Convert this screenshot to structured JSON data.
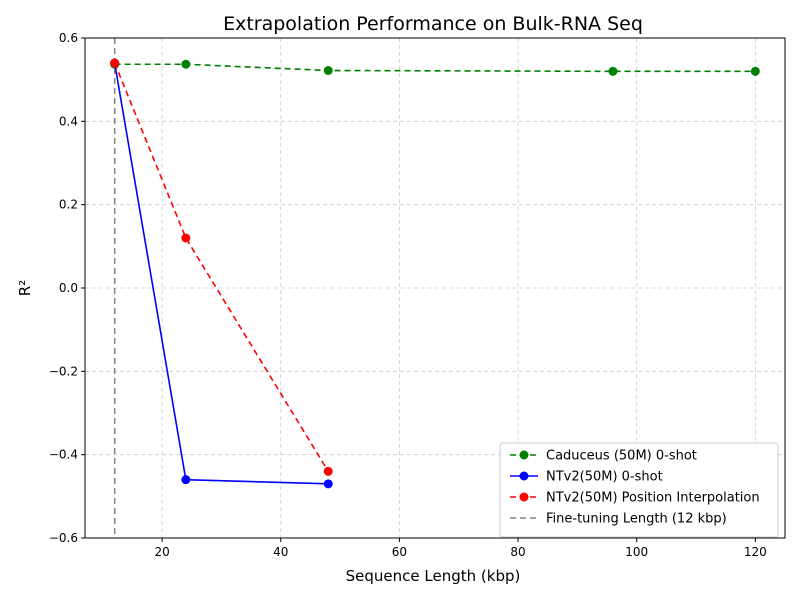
{
  "chart_data": {
    "type": "line",
    "title": "Extrapolation Performance on Bulk-RNA Seq",
    "xlabel": "Sequence Length (kbp)",
    "ylabel": "R²",
    "xlim": [
      7,
      125
    ],
    "ylim": [
      -0.6,
      0.6
    ],
    "x_ticks": [
      20,
      40,
      60,
      80,
      100,
      120
    ],
    "x_tick_labels": [
      "20",
      "40",
      "60",
      "80",
      "100",
      "120"
    ],
    "y_ticks": [
      -0.6,
      -0.4,
      -0.2,
      0.0,
      0.2,
      0.4,
      0.6
    ],
    "y_tick_labels": [
      "−0.6",
      "−0.4",
      "−0.2",
      "0.0",
      "0.2",
      "0.4",
      "0.6"
    ],
    "grid": true,
    "legend_position": "lower-right",
    "series": [
      {
        "name": "Caduceus (50M) 0-shot",
        "color": "#008000",
        "linestyle": "dashed",
        "marker": "circle",
        "x": [
          12,
          24,
          48,
          96,
          120
        ],
        "y": [
          0.537,
          0.537,
          0.522,
          0.52,
          0.52
        ]
      },
      {
        "name": "NTv2(50M) 0-shot",
        "color": "#0000ff",
        "linestyle": "solid",
        "marker": "circle",
        "x": [
          12,
          24,
          48
        ],
        "y": [
          0.54,
          -0.46,
          -0.47
        ]
      },
      {
        "name": "NTv2(50M) Position Interpolation",
        "color": "#ff0000",
        "linestyle": "dashed",
        "marker": "circle",
        "x": [
          12,
          24,
          48
        ],
        "y": [
          0.54,
          0.12,
          -0.44
        ]
      }
    ],
    "reference_lines": [
      {
        "name": "Fine-tuning Length (12 kbp)",
        "orientation": "vertical",
        "x": 12,
        "color": "#808080",
        "linestyle": "dashed"
      }
    ]
  }
}
